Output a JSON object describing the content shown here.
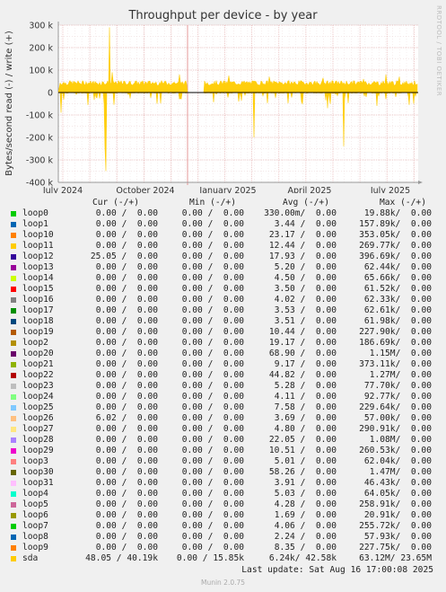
{
  "chart_data": {
    "type": "line",
    "title": "Throughput per device - by year",
    "ylabel": "Bytes/second read (-) / write (+)",
    "ylim": [
      -400000,
      300000
    ],
    "y_ticks": [
      "300 k",
      "200 k",
      "100 k",
      "0",
      "-100 k",
      "-200 k",
      "-300 k",
      "-400 k"
    ],
    "y_tick_values": [
      300000,
      200000,
      100000,
      0,
      -100000,
      -200000,
      -300000,
      -400000
    ],
    "x_ticks": [
      "July 2024",
      "October 2024",
      "January 2025",
      "April 2025",
      "July 2025"
    ],
    "grid": true,
    "series": [
      {
        "name": "sda",
        "color": "#ffcc00",
        "write_baseline": 42580,
        "read_baseline": 6240,
        "write_spikes": [
          290000,
          90000,
          80000,
          75000,
          70000,
          65000,
          60000,
          80000,
          70000
        ],
        "read_spikes": [
          -350000,
          -250000,
          -200000,
          -240000,
          -90000,
          -70000,
          -60000,
          -50000
        ]
      }
    ]
  },
  "side_label": "RRDTOOL / TOBI OETIKER",
  "legend": {
    "headers": [
      "Cur (-/+)",
      "Min (-/+)",
      "Avg (-/+)",
      "Max (-/+)"
    ],
    "rows": [
      {
        "name": "loop0",
        "color": "#00cc00",
        "cur": "0.00 /  0.00",
        "min": "0.00 /  0.00",
        "avg": "330.00m/  0.00",
        "max": "19.88k/  0.00"
      },
      {
        "name": "loop1",
        "color": "#0066b3",
        "cur": "0.00 /  0.00",
        "min": "0.00 /  0.00",
        "avg": "3.44 /  0.00",
        "max": "157.89k/  0.00"
      },
      {
        "name": "loop10",
        "color": "#ff8000",
        "cur": "0.00 /  0.00",
        "min": "0.00 /  0.00",
        "avg": "23.17 /  0.00",
        "max": "353.05k/  0.00"
      },
      {
        "name": "loop11",
        "color": "#ffcc00",
        "cur": "0.00 /  0.00",
        "min": "0.00 /  0.00",
        "avg": "12.44 /  0.00",
        "max": "269.77k/  0.00"
      },
      {
        "name": "loop12",
        "color": "#330099",
        "cur": "25.05 /  0.00",
        "min": "0.00 /  0.00",
        "avg": "17.93 /  0.00",
        "max": "396.69k/  0.00"
      },
      {
        "name": "loop13",
        "color": "#990099",
        "cur": "0.00 /  0.00",
        "min": "0.00 /  0.00",
        "avg": "5.20 /  0.00",
        "max": "62.44k/  0.00"
      },
      {
        "name": "loop14",
        "color": "#ccff00",
        "cur": "0.00 /  0.00",
        "min": "0.00 /  0.00",
        "avg": "4.50 /  0.00",
        "max": "65.66k/  0.00"
      },
      {
        "name": "loop15",
        "color": "#ff0000",
        "cur": "0.00 /  0.00",
        "min": "0.00 /  0.00",
        "avg": "3.50 /  0.00",
        "max": "61.52k/  0.00"
      },
      {
        "name": "loop16",
        "color": "#808080",
        "cur": "0.00 /  0.00",
        "min": "0.00 /  0.00",
        "avg": "4.02 /  0.00",
        "max": "62.33k/  0.00"
      },
      {
        "name": "loop17",
        "color": "#008f00",
        "cur": "0.00 /  0.00",
        "min": "0.00 /  0.00",
        "avg": "3.53 /  0.00",
        "max": "62.61k/  0.00"
      },
      {
        "name": "loop18",
        "color": "#00487d",
        "cur": "0.00 /  0.00",
        "min": "0.00 /  0.00",
        "avg": "3.51 /  0.00",
        "max": "61.98k/  0.00"
      },
      {
        "name": "loop19",
        "color": "#b35a00",
        "cur": "0.00 /  0.00",
        "min": "0.00 /  0.00",
        "avg": "10.44 /  0.00",
        "max": "227.90k/  0.00"
      },
      {
        "name": "loop2",
        "color": "#b38f00",
        "cur": "0.00 /  0.00",
        "min": "0.00 /  0.00",
        "avg": "19.17 /  0.00",
        "max": "186.69k/  0.00"
      },
      {
        "name": "loop20",
        "color": "#6b006b",
        "cur": "0.00 /  0.00",
        "min": "0.00 /  0.00",
        "avg": "68.90 /  0.00",
        "max": "1.15M/  0.00"
      },
      {
        "name": "loop21",
        "color": "#8fb300",
        "cur": "0.00 /  0.00",
        "min": "0.00 /  0.00",
        "avg": "9.17 /  0.00",
        "max": "373.11k/  0.00"
      },
      {
        "name": "loop22",
        "color": "#b30000",
        "cur": "0.00 /  0.00",
        "min": "0.00 /  0.00",
        "avg": "44.82 /  0.00",
        "max": "1.27M/  0.00"
      },
      {
        "name": "loop23",
        "color": "#bebebe",
        "cur": "0.00 /  0.00",
        "min": "0.00 /  0.00",
        "avg": "5.28 /  0.00",
        "max": "77.70k/  0.00"
      },
      {
        "name": "loop24",
        "color": "#80ff80",
        "cur": "0.00 /  0.00",
        "min": "0.00 /  0.00",
        "avg": "4.11 /  0.00",
        "max": "92.77k/  0.00"
      },
      {
        "name": "loop25",
        "color": "#80c9ff",
        "cur": "0.00 /  0.00",
        "min": "0.00 /  0.00",
        "avg": "7.58 /  0.00",
        "max": "229.64k/  0.00"
      },
      {
        "name": "loop26",
        "color": "#ffc080",
        "cur": "6.02 /  0.00",
        "min": "0.00 /  0.00",
        "avg": "3.69 /  0.00",
        "max": "57.00k/  0.00"
      },
      {
        "name": "loop27",
        "color": "#ffe680",
        "cur": "0.00 /  0.00",
        "min": "0.00 /  0.00",
        "avg": "4.80 /  0.00",
        "max": "290.91k/  0.00"
      },
      {
        "name": "loop28",
        "color": "#aa80ff",
        "cur": "0.00 /  0.00",
        "min": "0.00 /  0.00",
        "avg": "22.05 /  0.00",
        "max": "1.08M/  0.00"
      },
      {
        "name": "loop29",
        "color": "#ee00cc",
        "cur": "0.00 /  0.00",
        "min": "0.00 /  0.00",
        "avg": "10.51 /  0.00",
        "max": "260.53k/  0.00"
      },
      {
        "name": "loop3",
        "color": "#ff8080",
        "cur": "0.00 /  0.00",
        "min": "0.00 /  0.00",
        "avg": "5.01 /  0.00",
        "max": "62.04k/  0.00"
      },
      {
        "name": "loop30",
        "color": "#666600",
        "cur": "0.00 /  0.00",
        "min": "0.00 /  0.00",
        "avg": "58.26 /  0.00",
        "max": "1.47M/  0.00"
      },
      {
        "name": "loop31",
        "color": "#ffbfff",
        "cur": "0.00 /  0.00",
        "min": "0.00 /  0.00",
        "avg": "3.91 /  0.00",
        "max": "46.43k/  0.00"
      },
      {
        "name": "loop4",
        "color": "#00ffcc",
        "cur": "0.00 /  0.00",
        "min": "0.00 /  0.00",
        "avg": "5.03 /  0.00",
        "max": "64.05k/  0.00"
      },
      {
        "name": "loop5",
        "color": "#cc6699",
        "cur": "0.00 /  0.00",
        "min": "0.00 /  0.00",
        "avg": "4.28 /  0.00",
        "max": "258.91k/  0.00"
      },
      {
        "name": "loop6",
        "color": "#999900",
        "cur": "0.00 /  0.00",
        "min": "0.00 /  0.00",
        "avg": "1.69 /  0.00",
        "max": "20.91k/  0.00"
      },
      {
        "name": "loop7",
        "color": "#00cc00",
        "cur": "0.00 /  0.00",
        "min": "0.00 /  0.00",
        "avg": "4.06 /  0.00",
        "max": "255.72k/  0.00"
      },
      {
        "name": "loop8",
        "color": "#0066b3",
        "cur": "0.00 /  0.00",
        "min": "0.00 /  0.00",
        "avg": "2.24 /  0.00",
        "max": "57.93k/  0.00"
      },
      {
        "name": "loop9",
        "color": "#ff8000",
        "cur": "0.00 /  0.00",
        "min": "0.00 /  0.00",
        "avg": "8.35 /  0.00",
        "max": "227.75k/  0.00"
      },
      {
        "name": "sda",
        "color": "#ffcc00",
        "cur": "48.05 / 40.19k",
        "min": "0.00 / 15.85k",
        "avg": "6.24k/ 42.58k",
        "max": "63.12M/ 23.65M"
      }
    ]
  },
  "footer": "Last update: Sat Aug 16 17:00:08 2025",
  "version": "Munin 2.0.75"
}
